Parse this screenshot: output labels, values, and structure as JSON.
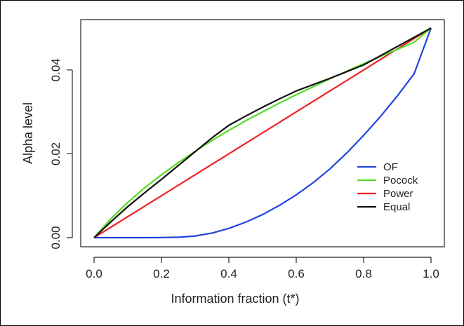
{
  "chart_data": {
    "type": "line",
    "xlabel": "Information fraction (t*)",
    "ylabel": "Alpha level",
    "xlim": [
      0.0,
      1.0
    ],
    "ylim": [
      0.0,
      0.05
    ],
    "x_ticks": [
      "0.0",
      "0.2",
      "0.4",
      "0.6",
      "0.8",
      "1.0"
    ],
    "y_ticks": [
      "0.00",
      "0.02",
      "0.04"
    ],
    "legend_position": "bottom-right",
    "grid": false,
    "x": [
      0.0,
      0.05,
      0.1,
      0.15,
      0.2,
      0.25,
      0.3,
      0.35,
      0.4,
      0.45,
      0.5,
      0.55,
      0.6,
      0.65,
      0.7,
      0.75,
      0.8,
      0.85,
      0.9,
      0.95,
      1.0
    ],
    "series": [
      {
        "name": "OF",
        "color": "#2244dd",
        "values": [
          0.0,
          0.0,
          0.0,
          0.0,
          2e-05,
          0.0001,
          0.0004,
          0.0011,
          0.0022,
          0.0037,
          0.0055,
          0.0077,
          0.0102,
          0.0131,
          0.0164,
          0.0202,
          0.0244,
          0.0289,
          0.0338,
          0.0391,
          0.05
        ]
      },
      {
        "name": "Pocock",
        "color": "#55dd22",
        "values": [
          0.0,
          0.0045,
          0.0084,
          0.0119,
          0.015,
          0.0179,
          0.0206,
          0.0232,
          0.0256,
          0.0279,
          0.03,
          0.0321,
          0.0341,
          0.036,
          0.0379,
          0.0397,
          0.0415,
          0.0432,
          0.0449,
          0.0466,
          0.05
        ]
      },
      {
        "name": "Power",
        "color": "#ee2222",
        "values": [
          0.0,
          0.0025,
          0.005,
          0.0075,
          0.01,
          0.0125,
          0.015,
          0.0175,
          0.02,
          0.0225,
          0.025,
          0.0275,
          0.03,
          0.0325,
          0.035,
          0.0375,
          0.04,
          0.0425,
          0.045,
          0.0475,
          0.05
        ]
      },
      {
        "name": "Equal",
        "color": "#111111",
        "values": [
          0.0,
          0.0038,
          0.0074,
          0.0107,
          0.0139,
          0.0172,
          0.0205,
          0.0238,
          0.0268,
          0.029,
          0.0311,
          0.0331,
          0.035,
          0.0365,
          0.038,
          0.0396,
          0.0412,
          0.0434,
          0.0456,
          0.0478,
          0.05
        ]
      }
    ]
  }
}
